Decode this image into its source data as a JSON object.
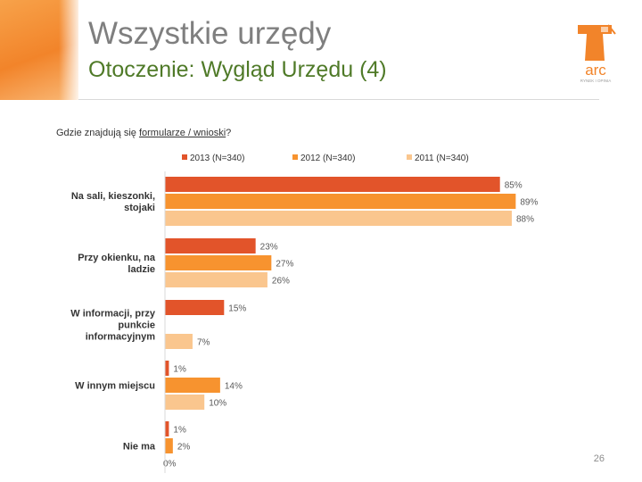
{
  "header": {
    "title": "Wszystkie urzędy",
    "subtitle": "Otoczenie: Wygląd Urzędu (4)"
  },
  "question": {
    "prefix": "Gdzie znajdują się ",
    "underlined": "formularze / wnioski",
    "suffix": "?"
  },
  "logo": {
    "text": "arc",
    "tagline": "RYNEK I OPINIA"
  },
  "page_number": "26",
  "colors": {
    "accent_orange": "#f2842a",
    "subtitle_green": "#4f7a28"
  },
  "chart_data": {
    "type": "bar",
    "orientation": "horizontal",
    "categories": [
      [
        "Na sali, kieszonki,",
        "stojaki"
      ],
      [
        "Przy okienku, na",
        "ladzie"
      ],
      [
        "W informacji, przy",
        "punkcie",
        "informacyjnym"
      ],
      [
        "W innym miejscu"
      ],
      [
        "Nie ma"
      ]
    ],
    "series": [
      {
        "name": "2013 (N=340)",
        "color": "#e2542a",
        "values": [
          85,
          23,
          15,
          1,
          1
        ],
        "labels": [
          "85%",
          "23%",
          "15%",
          "1%",
          "1%"
        ]
      },
      {
        "name": "2012 (N=340)",
        "color": "#f7932f",
        "values": [
          89,
          27,
          null,
          14,
          2
        ],
        "labels": [
          "89%",
          "27%",
          "",
          "14%",
          "2%"
        ]
      },
      {
        "name": "2011 (N=340)",
        "color": "#fac68e",
        "values": [
          88,
          26,
          7,
          10,
          0
        ],
        "labels": [
          "88%",
          "26%",
          "7%",
          "10%",
          "0%"
        ]
      }
    ],
    "xlim": [
      0,
      100
    ],
    "legend_position": "top",
    "grid": false
  }
}
